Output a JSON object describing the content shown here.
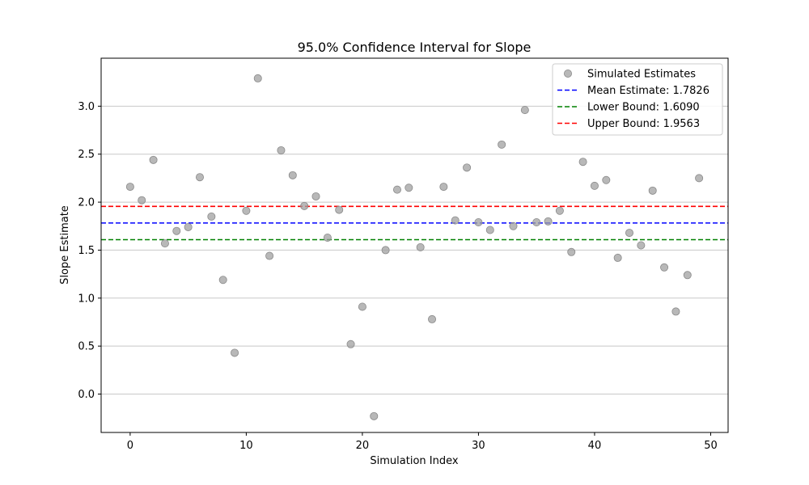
{
  "chart_data": {
    "type": "scatter",
    "title": "95.0% Confidence Interval for Slope",
    "xlabel": "Simulation Index",
    "ylabel": "Slope Estimate",
    "xlim": [
      -2.5,
      51.5
    ],
    "ylim": [
      -0.4,
      3.5
    ],
    "xticks": [
      0,
      10,
      20,
      30,
      40,
      50
    ],
    "yticks": [
      0.0,
      0.5,
      1.0,
      1.5,
      2.0,
      2.5,
      3.0
    ],
    "xtick_labels": [
      "0",
      "10",
      "20",
      "30",
      "40",
      "50"
    ],
    "ytick_labels": [
      "0.0",
      "0.5",
      "1.0",
      "1.5",
      "2.0",
      "2.5",
      "3.0"
    ],
    "grid": "horizontal",
    "legend_position": "top-right",
    "series": [
      {
        "name": "Simulated Estimates",
        "color": "#a0a0a0",
        "marker": "circle",
        "x": [
          0,
          1,
          2,
          3,
          4,
          5,
          6,
          7,
          8,
          9,
          10,
          11,
          12,
          13,
          14,
          15,
          16,
          17,
          18,
          19,
          20,
          21,
          22,
          23,
          24,
          25,
          26,
          27,
          28,
          29,
          30,
          31,
          32,
          33,
          34,
          35,
          36,
          37,
          38,
          39,
          40,
          41,
          42,
          43,
          44,
          45,
          46,
          47,
          48,
          49
        ],
        "y": [
          2.16,
          2.02,
          2.44,
          1.57,
          1.7,
          1.74,
          2.26,
          1.85,
          1.19,
          0.43,
          1.91,
          3.29,
          1.44,
          2.54,
          2.28,
          1.96,
          2.06,
          1.63,
          1.92,
          0.52,
          0.91,
          -0.23,
          1.5,
          2.13,
          2.15,
          1.53,
          0.78,
          2.16,
          1.81,
          2.36,
          1.79,
          1.71,
          2.6,
          1.75,
          2.96,
          1.79,
          1.8,
          1.91,
          1.48,
          2.42,
          2.17,
          2.23,
          1.42,
          1.68,
          1.55,
          2.12,
          1.32,
          0.86,
          1.24,
          2.25
        ]
      }
    ],
    "reference_lines": [
      {
        "name": "Mean Estimate: 1.7826",
        "value": 1.7826,
        "color": "#0000ff",
        "style": "dashed"
      },
      {
        "name": "Lower Bound: 1.6090",
        "value": 1.609,
        "color": "#008000",
        "style": "dashed"
      },
      {
        "name": "Upper Bound: 1.9563",
        "value": 1.9563,
        "color": "#ff0000",
        "style": "dashed"
      }
    ]
  }
}
